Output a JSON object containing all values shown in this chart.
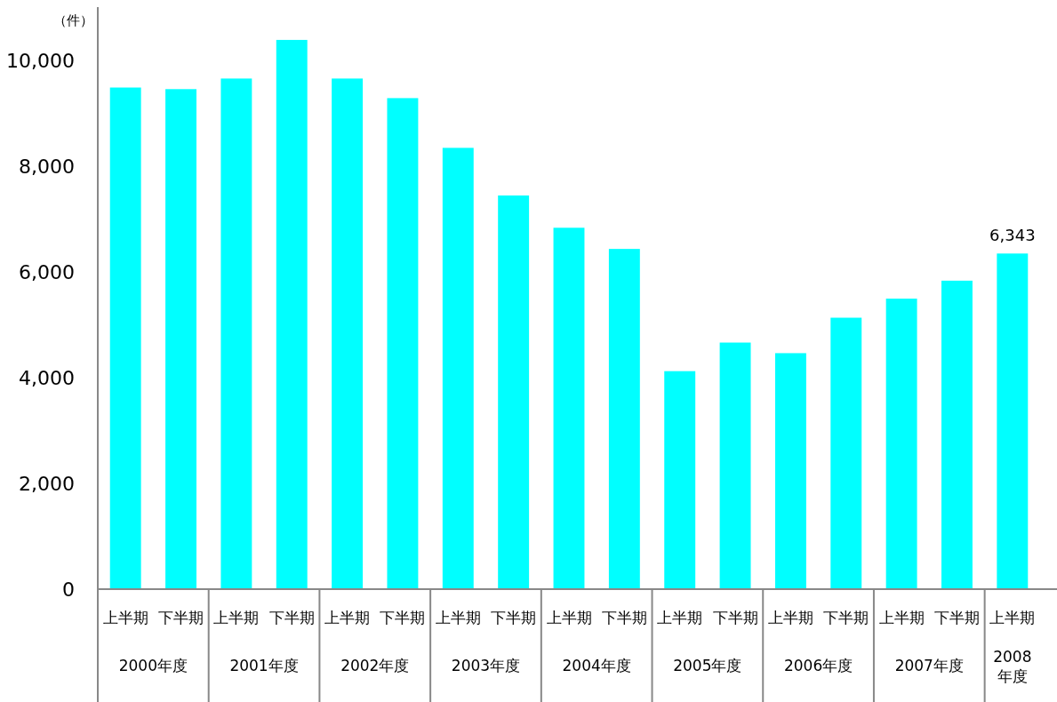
{
  "chart_data": {
    "type": "bar",
    "ylabel": "（件）",
    "categories": [
      "上半期",
      "下半期",
      "上半期",
      "下半期",
      "上半期",
      "下半期",
      "上半期",
      "下半期",
      "上半期",
      "下半期",
      "上半期",
      "下半期",
      "上半期",
      "下半期",
      "上半期",
      "下半期",
      "上半期"
    ],
    "annotations": [
      "2000年度",
      "2001年度",
      "2002年度",
      "2003年度",
      "2004年度",
      "2005年度",
      "2006年度",
      "2007年度",
      "2008年度"
    ],
    "values": [
      9480,
      9450,
      9650,
      10380,
      9650,
      9280,
      8340,
      7440,
      6830,
      6430,
      4120,
      4660,
      4460,
      5130,
      5490,
      5830,
      6343
    ],
    "value_labels": [
      null,
      null,
      null,
      null,
      null,
      null,
      null,
      null,
      null,
      null,
      null,
      null,
      null,
      null,
      null,
      null,
      "6,343"
    ],
    "color": "#00ffff",
    "ylim": [
      0,
      11000
    ],
    "yticks": [
      0,
      {
        "value": 2000,
        "label": "2,000"
      },
      {
        "value": 4000,
        "label": "4,000"
      },
      {
        "value": 6000,
        "label": "6,000"
      },
      {
        "value": 8000,
        "label": "8,000"
      },
      {
        "value": 10000,
        "label": "10,000"
      }
    ],
    "grid": false
  }
}
